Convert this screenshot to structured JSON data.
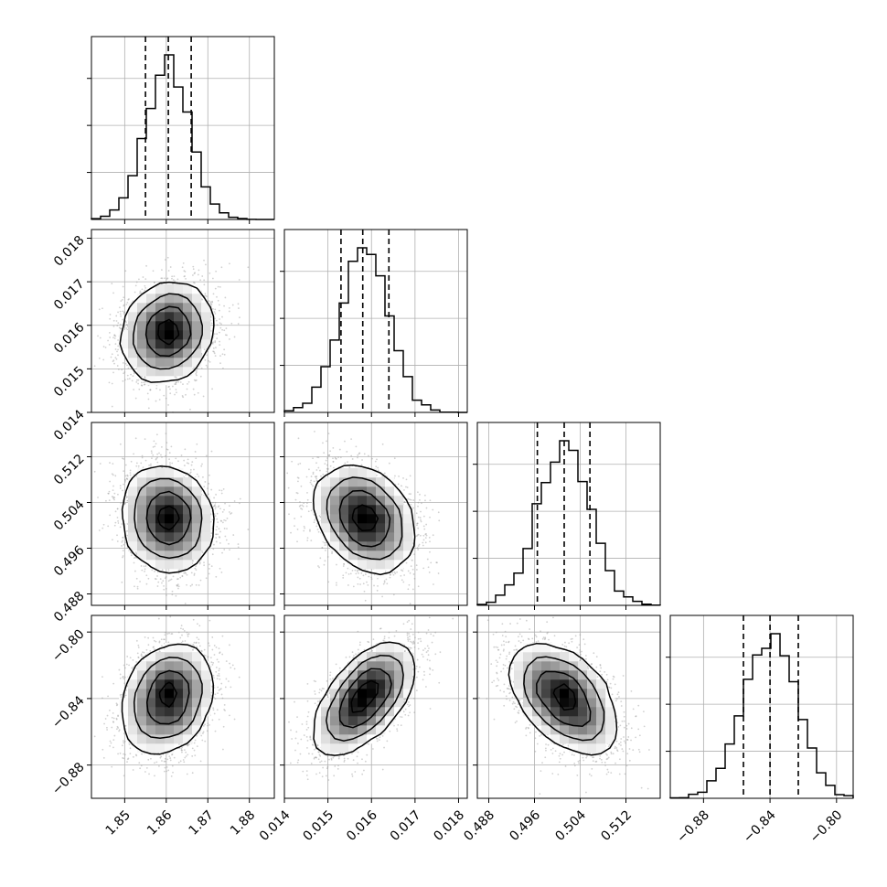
{
  "chart_data": {
    "type": "corner",
    "parameters": [
      "",
      "",
      "",
      ""
    ],
    "ranges": [
      [
        1.842,
        1.886
      ],
      [
        0.014,
        0.0182
      ],
      [
        0.486,
        0.518
      ],
      [
        -0.9,
        -0.79
      ]
    ],
    "ticks": [
      [
        1.85,
        1.86,
        1.87,
        1.88
      ],
      [
        0.014,
        0.015,
        0.016,
        0.017,
        0.018
      ],
      [
        0.488,
        0.496,
        0.504,
        0.512
      ],
      [
        -0.88,
        -0.84,
        -0.8
      ]
    ],
    "tick_labels": [
      [
        "1.85",
        "1.86",
        "1.87",
        "1.88"
      ],
      [
        "0.014",
        "0.015",
        "0.016",
        "0.017",
        "0.018"
      ],
      [
        "0.488",
        "0.496",
        "0.504",
        "0.512"
      ],
      [
        "−0.88",
        "−0.84",
        "−0.80"
      ]
    ],
    "quantiles": [
      [
        1.855,
        1.8605,
        1.866
      ],
      [
        0.0153,
        0.0158,
        0.0164
      ],
      [
        0.4965,
        0.5012,
        0.5057
      ],
      [
        -0.856,
        -0.84,
        -0.823
      ]
    ],
    "distributions": [
      {
        "mean": 1.8605,
        "sd": 0.0053
      },
      {
        "mean": 0.01585,
        "sd": 0.00055
      },
      {
        "mean": 0.5012,
        "sd": 0.0045
      },
      {
        "mean": -0.84,
        "sd": 0.016
      }
    ],
    "correlations": [
      {
        "pair": [
          0,
          1
        ],
        "r": 0.15
      },
      {
        "pair": [
          0,
          2
        ],
        "r": -0.1
      },
      {
        "pair": [
          0,
          3
        ],
        "r": 0.25
      },
      {
        "pair": [
          1,
          2
        ],
        "r": -0.3
      },
      {
        "pair": [
          1,
          3
        ],
        "r": 0.6
      },
      {
        "pair": [
          2,
          3
        ],
        "r": -0.45
      }
    ],
    "histogram_bins": 20,
    "grid": true,
    "colors": {
      "contour": "#000000",
      "scatter": "#9a9a9a",
      "grid": "#b0b0b0"
    }
  }
}
